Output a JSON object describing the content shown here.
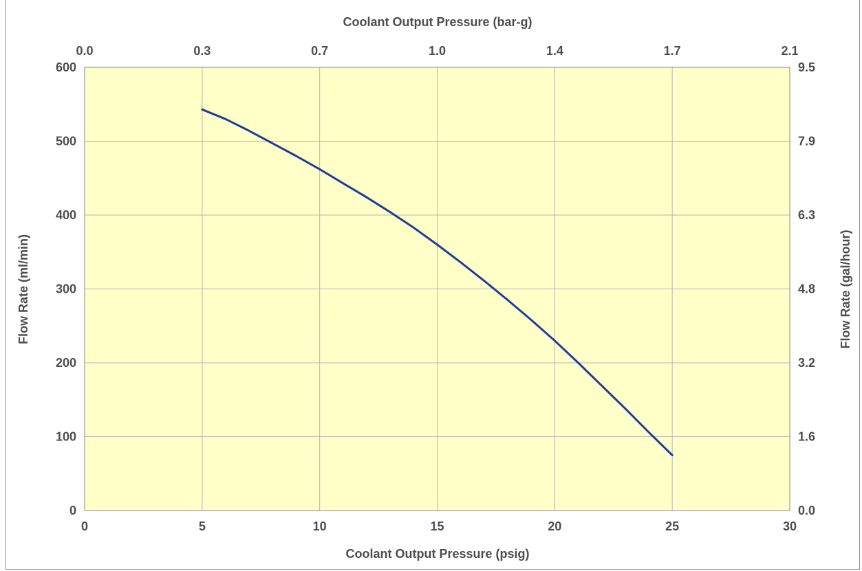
{
  "chart_data": {
    "type": "line",
    "title": "",
    "colors": {
      "plot_background": "#ffffc8",
      "line": "#1f3c99",
      "grid": "#b4b4b4",
      "axis_text": "#4d4d4d"
    },
    "grid": true,
    "x_bottom": {
      "label": "Coolant Output Pressure (psig)",
      "range": [
        0,
        30
      ],
      "ticks": [
        0,
        5,
        10,
        15,
        20,
        25,
        30
      ],
      "tick_labels": [
        "0",
        "5",
        "10",
        "15",
        "20",
        "25",
        "30"
      ]
    },
    "x_top": {
      "label": "Coolant Output Pressure (bar-g)",
      "tick_labels": [
        "0.0",
        "0.3",
        "0.7",
        "1.0",
        "1.4",
        "1.7",
        "2.1"
      ]
    },
    "y_left": {
      "label": "Flow Rate (ml/min)",
      "range": [
        0,
        600
      ],
      "ticks": [
        0,
        100,
        200,
        300,
        400,
        500,
        600
      ],
      "tick_labels": [
        "0",
        "100",
        "200",
        "300",
        "400",
        "500",
        "600"
      ]
    },
    "y_right": {
      "label": "Flow Rate (gal/hour)",
      "tick_labels": [
        "0.0",
        "1.6",
        "3.2",
        "4.8",
        "6.3",
        "7.9",
        "9.5"
      ]
    },
    "series": [
      {
        "x": [
          5,
          6,
          7,
          8,
          9,
          10,
          11,
          12,
          13,
          14,
          15,
          16,
          17,
          18,
          19,
          20,
          21,
          22,
          23,
          24,
          25
        ],
        "y": [
          543,
          530,
          514,
          497,
          480,
          462,
          443,
          424,
          404,
          383,
          360,
          336,
          311,
          285,
          258,
          230,
          200,
          169,
          138,
          106,
          75
        ]
      }
    ]
  }
}
